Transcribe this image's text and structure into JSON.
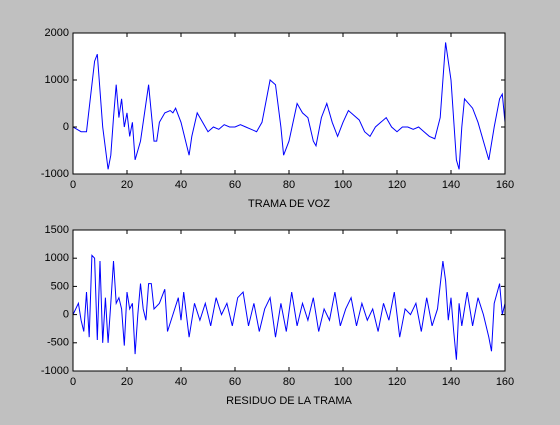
{
  "chart_data": [
    {
      "type": "line",
      "xlabel": "TRAMA DE VOZ",
      "color": "#0000ff",
      "xlim": [
        0,
        160
      ],
      "xticks": [
        0,
        20,
        40,
        60,
        80,
        100,
        120,
        140,
        160
      ],
      "ylim": [
        -1000,
        2000
      ],
      "yticks": [
        -1000,
        0,
        1000,
        2000
      ],
      "x": [
        0,
        3,
        5,
        8,
        9,
        11,
        13,
        14,
        15,
        16,
        17,
        18,
        19,
        20,
        21,
        22,
        23,
        24,
        25,
        27,
        28,
        29,
        30,
        31,
        32,
        34,
        36,
        37,
        38,
        40,
        43,
        44,
        46,
        48,
        50,
        52,
        54,
        56,
        58,
        60,
        62,
        64,
        66,
        68,
        70,
        72,
        73,
        75,
        77,
        78,
        80,
        83,
        85,
        87,
        89,
        90,
        92,
        94,
        96,
        98,
        100,
        102,
        104,
        106,
        108,
        110,
        112,
        114,
        116,
        118,
        120,
        122,
        124,
        126,
        128,
        130,
        132,
        134,
        136,
        138,
        140,
        142,
        143,
        144,
        145,
        148,
        150,
        152,
        154,
        156,
        158,
        159,
        160
      ],
      "values": [
        0,
        -100,
        -100,
        1400,
        1550,
        0,
        -900,
        -600,
        200,
        900,
        200,
        600,
        0,
        300,
        -200,
        100,
        -700,
        -500,
        -300,
        500,
        900,
        300,
        -300,
        -300,
        100,
        300,
        350,
        300,
        400,
        100,
        -600,
        -200,
        300,
        100,
        -100,
        0,
        -50,
        50,
        0,
        0,
        50,
        0,
        -50,
        -100,
        100,
        700,
        1000,
        900,
        0,
        -600,
        -300,
        500,
        300,
        200,
        -300,
        -400,
        200,
        500,
        100,
        -200,
        100,
        350,
        250,
        150,
        -100,
        -200,
        0,
        100,
        200,
        0,
        -100,
        0,
        0,
        -50,
        0,
        -100,
        -200,
        -250,
        200,
        1800,
        1000,
        -700,
        -900,
        0,
        600,
        400,
        100,
        -300,
        -700,
        0,
        600,
        700,
        100
      ]
    },
    {
      "type": "line",
      "xlabel": "RESIDUO DE LA TRAMA",
      "color": "#0000ff",
      "xlim": [
        0,
        160
      ],
      "xticks": [
        0,
        20,
        40,
        60,
        80,
        100,
        120,
        140,
        160
      ],
      "ylim": [
        -1000,
        1500
      ],
      "yticks": [
        -1000,
        -500,
        0,
        500,
        1000,
        1500
      ],
      "x": [
        0,
        2,
        3,
        4,
        5,
        6,
        7,
        8,
        9,
        10,
        11,
        12,
        13,
        14,
        15,
        16,
        17,
        18,
        19,
        20,
        21,
        22,
        23,
        24,
        25,
        26,
        27,
        28,
        29,
        30,
        32,
        34,
        35,
        37,
        39,
        40,
        41,
        43,
        45,
        47,
        49,
        51,
        53,
        55,
        57,
        59,
        61,
        63,
        65,
        67,
        69,
        71,
        73,
        75,
        77,
        79,
        81,
        83,
        85,
        87,
        89,
        91,
        93,
        95,
        97,
        99,
        101,
        103,
        105,
        107,
        109,
        111,
        113,
        115,
        117,
        119,
        121,
        123,
        125,
        127,
        129,
        131,
        133,
        135,
        137,
        138,
        139,
        140,
        141,
        142,
        143,
        144,
        146,
        148,
        150,
        152,
        154,
        155,
        156,
        158,
        159,
        160
      ],
      "values": [
        0,
        200,
        -100,
        -300,
        400,
        -400,
        1050,
        1000,
        -450,
        950,
        -500,
        300,
        -500,
        200,
        950,
        200,
        300,
        100,
        -550,
        400,
        100,
        200,
        -700,
        0,
        550,
        100,
        -100,
        550,
        550,
        100,
        200,
        450,
        -300,
        0,
        300,
        -100,
        400,
        -400,
        200,
        -100,
        200,
        -200,
        300,
        0,
        200,
        -200,
        300,
        400,
        -200,
        200,
        -300,
        100,
        300,
        -400,
        200,
        -300,
        400,
        -200,
        200,
        -100,
        300,
        -300,
        100,
        -100,
        400,
        -200,
        100,
        300,
        -200,
        200,
        -100,
        100,
        -300,
        200,
        -100,
        400,
        -400,
        100,
        0,
        200,
        -300,
        300,
        -200,
        100,
        950,
        600,
        -100,
        300,
        -300,
        -800,
        200,
        -200,
        400,
        -200,
        300,
        0,
        -400,
        -650,
        200,
        550,
        0,
        200
      ]
    }
  ]
}
